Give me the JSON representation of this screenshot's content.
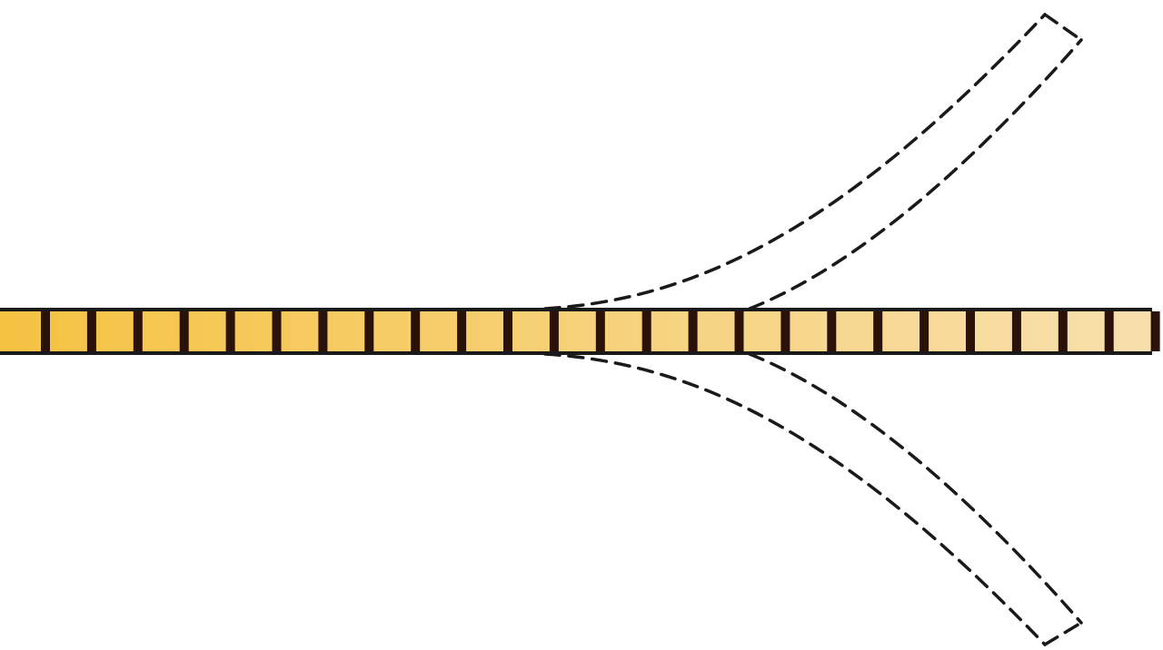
{
  "diagram": {
    "background_color": "#ffffff",
    "strip": {
      "gradient_colors": [
        "#f5c242",
        "#f8e0ae"
      ],
      "outline_color": "#1a1a1a",
      "divider_color": "#2a1208",
      "segment_count": 25
    },
    "branches": {
      "style": "dashed",
      "stroke_color": "#1a1a1a",
      "count": 2,
      "directions": [
        "upper-right",
        "lower-right"
      ]
    }
  }
}
